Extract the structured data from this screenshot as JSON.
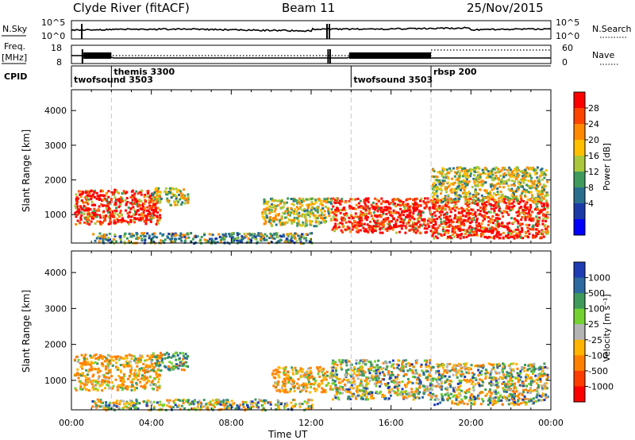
{
  "header": {
    "radar": "Clyde River (fitACF)",
    "beam": "Beam 11",
    "date": "25/Nov/2015"
  },
  "status_panels": {
    "nsky": {
      "label": "N.Sky",
      "left_ticks": [
        "10^5",
        "10^0"
      ],
      "right_ticks": [
        "10^5",
        "10^0"
      ],
      "right_label": "N.Search",
      "right_label_style": "dotted"
    },
    "freq": {
      "label": "Freq.",
      "unit": "[MHz]",
      "left_ticks": [
        "18",
        "8"
      ],
      "right_ticks": [
        "60",
        "0"
      ],
      "right_label": "Nave",
      "right_label_style": "dotted"
    },
    "cpid": {
      "label": "CPID",
      "modes": [
        {
          "name": "twofsound",
          "id": "3503",
          "start_hour": 0.0,
          "row": 2
        },
        {
          "name": "themis",
          "id": "3300",
          "start_hour": 2.0,
          "row": 1
        },
        {
          "name": "twofsound",
          "id": "3503",
          "start_hour": 14.0,
          "row": 2
        },
        {
          "name": "rbsp",
          "id": "200",
          "start_hour": 18.0,
          "row": 1
        }
      ]
    }
  },
  "x_axis": {
    "label": "Time UT",
    "ticks": [
      "00:00",
      "04:00",
      "08:00",
      "12:00",
      "16:00",
      "20:00",
      "00:00"
    ],
    "range_hours": [
      0,
      24
    ]
  },
  "chart_data": [
    {
      "type": "heatmap",
      "panel": "power",
      "ylabel": "Slant Range [km]",
      "yticks": [
        1000,
        2000,
        3000,
        4000
      ],
      "ylim": [
        180,
        4600
      ],
      "xlim": [
        0,
        24
      ],
      "colorbar": {
        "label": "Power [dB]",
        "ticks": [
          "28",
          "24",
          "20",
          "16",
          "12",
          "8",
          "4"
        ],
        "colors": [
          "#ff0000",
          "#ff4400",
          "#ff8a00",
          "#ffc000",
          "#aac83c",
          "#3f9a5c",
          "#2a6e8e",
          "#1a3aa8",
          "#0000ff"
        ]
      },
      "scatter_regions": [
        {
          "t": [
            0.1,
            4.4
          ],
          "r": [
            750,
            1750
          ],
          "value": "high"
        },
        {
          "t": [
            4.0,
            5.8
          ],
          "r": [
            1300,
            1800
          ],
          "value": "mid"
        },
        {
          "t": [
            1.0,
            12.0
          ],
          "r": [
            200,
            500
          ],
          "value": "low"
        },
        {
          "t": [
            9.5,
            13.0
          ],
          "r": [
            700,
            1500
          ],
          "value": "mid"
        },
        {
          "t": [
            13.0,
            18.0
          ],
          "r": [
            500,
            1500
          ],
          "value": "high"
        },
        {
          "t": [
            18.0,
            23.8
          ],
          "r": [
            350,
            1500
          ],
          "value": "high"
        },
        {
          "t": [
            18.0,
            23.8
          ],
          "r": [
            1400,
            2400
          ],
          "value": "mid"
        }
      ],
      "vertical_markers_hours": [
        2.0,
        14.0,
        18.0
      ]
    },
    {
      "type": "heatmap",
      "panel": "velocity",
      "ylabel": "Slant Range [km]",
      "yticks": [
        1000,
        2000,
        3000,
        4000
      ],
      "ylim": [
        180,
        4600
      ],
      "xlim": [
        0,
        24
      ],
      "colorbar": {
        "label": "Velocity [m s⁻¹]",
        "ticks": [
          "1000",
          "500",
          "100",
          "25",
          "-25",
          "-100",
          "-500",
          "-1000"
        ],
        "colors": [
          "#1e3cb4",
          "#2d6aa0",
          "#3f9a5c",
          "#73d232",
          "#b4b4b4",
          "#ffb400",
          "#ff8000",
          "#ff3c00",
          "#ff0000"
        ]
      },
      "scatter_regions": [
        {
          "t": [
            0.1,
            4.4
          ],
          "r": [
            750,
            1750
          ],
          "value": "neg"
        },
        {
          "t": [
            4.0,
            5.8
          ],
          "r": [
            1300,
            1800
          ],
          "value": "pos"
        },
        {
          "t": [
            1.0,
            12.0
          ],
          "r": [
            200,
            500
          ],
          "value": "mix"
        },
        {
          "t": [
            10.0,
            13.0
          ],
          "r": [
            700,
            1400
          ],
          "value": "neg"
        },
        {
          "t": [
            13.0,
            18.0
          ],
          "r": [
            500,
            1600
          ],
          "value": "mix"
        },
        {
          "t": [
            18.0,
            23.8
          ],
          "r": [
            350,
            1500
          ],
          "value": "mix"
        }
      ],
      "vertical_markers_hours": [
        2.0,
        14.0,
        18.0
      ]
    }
  ]
}
